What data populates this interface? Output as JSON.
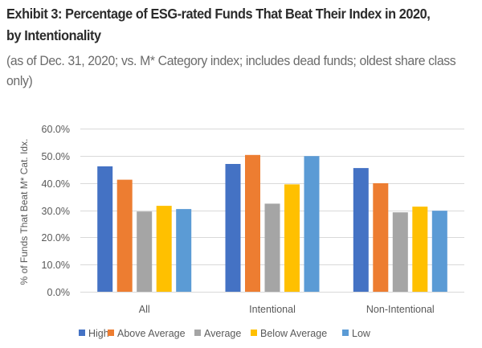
{
  "header": {
    "title": "Exhibit 3: Percentage of ESG-rated Funds That Beat Their Index in 2020, by Intentionality",
    "subtitle": "(as of Dec. 31, 2020; vs. M* Category index; includes dead funds; oldest share class only)"
  },
  "chart_data": {
    "type": "bar",
    "title": "Percentage of ESG-rated Funds That Beat Their Index in 2020, by Intentionality",
    "xlabel": "",
    "ylabel": "% of Funds That Beat M* Cat. Idx.",
    "categories": [
      "All",
      "Intentional",
      "Non-Intentional"
    ],
    "ylim": [
      0,
      60
    ],
    "yticks": [
      0,
      10,
      20,
      30,
      40,
      50,
      60
    ],
    "ytick_labels": [
      "0.0%",
      "10.0%",
      "20.0%",
      "30.0%",
      "40.0%",
      "50.0%",
      "60.0%"
    ],
    "grid": true,
    "legend_position": "bottom",
    "series": [
      {
        "name": "High",
        "color": "#4472c4",
        "values": [
          46.1,
          47.0,
          45.5
        ]
      },
      {
        "name": "Above Average",
        "color": "#ed7d31",
        "values": [
          41.2,
          50.3,
          39.9
        ]
      },
      {
        "name": "Average",
        "color": "#a5a5a5",
        "values": [
          29.5,
          32.4,
          29.2
        ]
      },
      {
        "name": "Below Average",
        "color": "#ffc000",
        "values": [
          31.6,
          39.5,
          31.3
        ]
      },
      {
        "name": "Low",
        "color": "#5b9bd5",
        "values": [
          30.4,
          49.9,
          29.8
        ]
      }
    ]
  }
}
